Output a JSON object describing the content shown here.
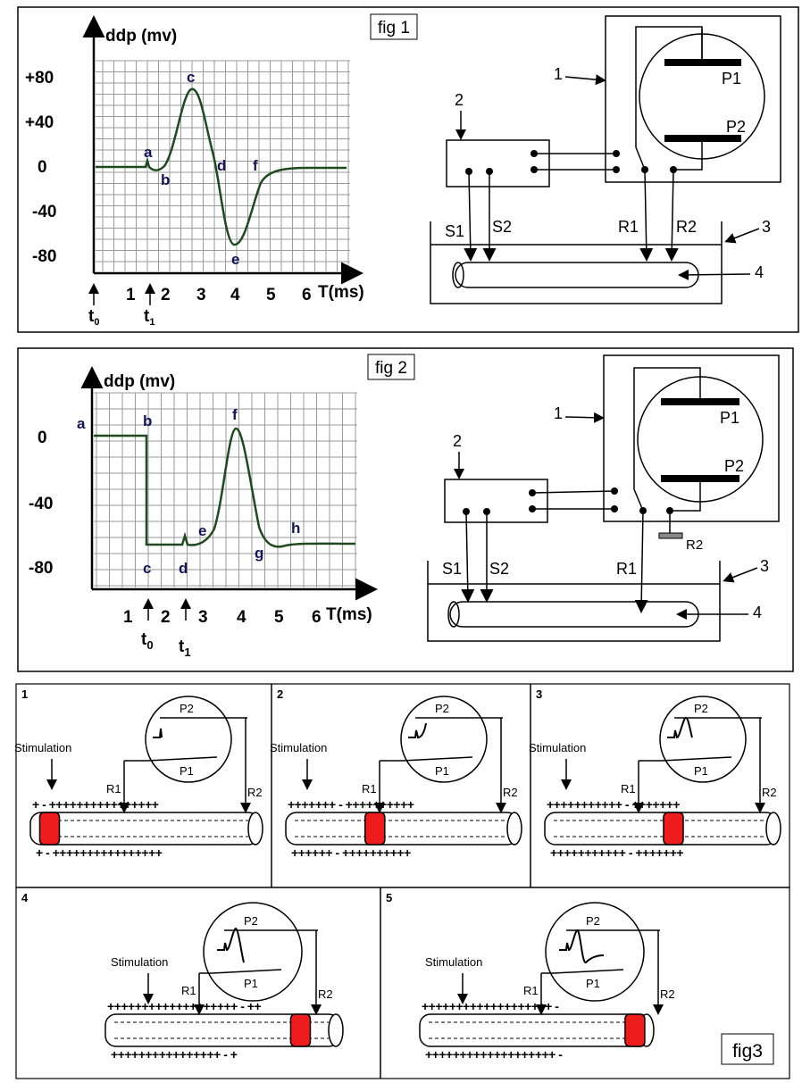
{
  "fig1": {
    "tag": "fig 1",
    "y_title": "ddp (mv)",
    "y_ticks": [
      "+80",
      "+40",
      "0",
      "-40",
      "-80"
    ],
    "x_ticks": [
      "1",
      "2",
      "3",
      "4",
      "5",
      "6"
    ],
    "x_unit": "T(ms)",
    "t0": "t",
    "t0_sub": "0",
    "t1": "t",
    "t1_sub": "1",
    "points": {
      "a": "a",
      "b": "b",
      "c": "c",
      "d": "d",
      "e": "e",
      "f": "f"
    },
    "callouts": [
      "1",
      "2",
      "3",
      "4"
    ],
    "plates": [
      "P1",
      "P2"
    ],
    "electrodes": [
      "S1",
      "S2",
      "R1",
      "R2"
    ]
  },
  "fig2": {
    "tag": "fig 2",
    "y_title": "ddp (mv)",
    "y_ticks": [
      "0",
      "-40",
      "-80"
    ],
    "x_ticks": [
      "1",
      "2",
      "3",
      "4",
      "5",
      "6"
    ],
    "x_unit": "T(ms)",
    "t0": "t",
    "t0_sub": "0",
    "t1": "t",
    "t1_sub": "1",
    "points": {
      "a": "a",
      "b": "b",
      "c": "c",
      "d": "d",
      "e": "e",
      "f": "f",
      "g": "g",
      "h": "h"
    },
    "callouts": [
      "1",
      "2",
      "3",
      "4"
    ],
    "plates": [
      "P1",
      "P2"
    ],
    "electrodes": [
      "S1",
      "S2",
      "R1",
      "R2"
    ]
  },
  "fig3": {
    "tag": "fig3",
    "stimulation": "Stimulation",
    "panels": [
      {
        "num": "1",
        "top_plus": "+ -  ++++++++++++++++",
        "bottom_plus": "+ -  ++++++++++++++++"
      },
      {
        "num": "2",
        "top_plus": "+++++++ - ++++++++++",
        "bottom_plus": "++++++  -  ++++++++++"
      },
      {
        "num": "3",
        "top_plus": "+++++++++++ - +++++++",
        "bottom_plus": "+++++++++++  -  +++++++"
      },
      {
        "num": "4",
        "top_plus": "+++++++++++++++++++ - ++",
        "bottom_plus": "++++++++++++++++  -  +"
      },
      {
        "num": "5",
        "top_plus": "+++++++++++++++++++  -",
        "bottom_plus": "+++++++++++++++++++  -"
      }
    ],
    "plates": [
      "P2",
      "P1"
    ],
    "electrodes": [
      "R1",
      "R2"
    ]
  }
}
